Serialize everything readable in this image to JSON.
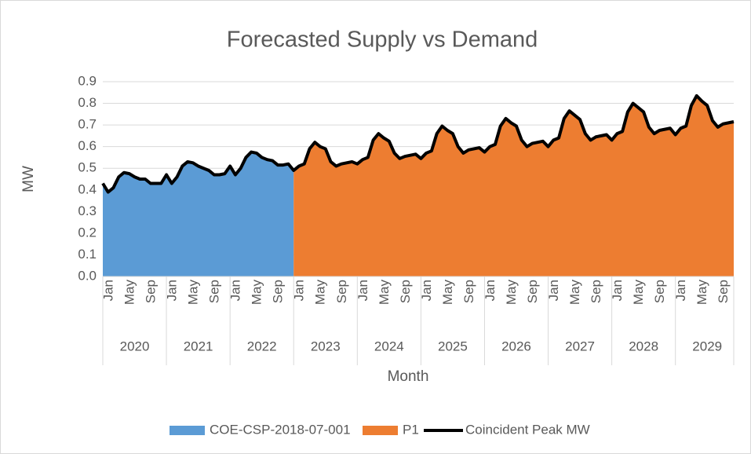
{
  "chart_data": {
    "type": "area",
    "title": "Forecasted Supply vs Demand",
    "y_label": "MW",
    "x_label": "Month",
    "categories": [
      "Jan",
      null,
      null,
      null,
      "May",
      null,
      null,
      null,
      "Sep",
      null,
      null,
      null,
      "Jan",
      null,
      null,
      null,
      "May",
      null,
      null,
      null,
      "Sep",
      null,
      null,
      null,
      "Jan",
      null,
      null,
      null,
      "May",
      null,
      null,
      null,
      "Sep",
      null,
      null,
      null,
      "Jan",
      null,
      null,
      null,
      "May",
      null,
      null,
      null,
      "Sep",
      null,
      null,
      null,
      "Jan",
      null,
      null,
      null,
      "May",
      null,
      null,
      null,
      "Sep",
      null,
      null,
      null,
      "Jan",
      null,
      null,
      null,
      "May",
      null,
      null,
      null,
      "Sep",
      null,
      null,
      null,
      "Jan",
      null,
      null,
      null,
      "May",
      null,
      null,
      null,
      "Sep",
      null,
      null,
      null,
      "Jan",
      null,
      null,
      null,
      "May",
      null,
      null,
      null,
      "Sep",
      null,
      null,
      null,
      "Jan",
      null,
      null,
      null,
      "May",
      null,
      null,
      null,
      "Sep",
      null,
      null,
      null,
      "Jan",
      null,
      null,
      null,
      "May",
      null,
      null,
      null,
      "Sep",
      null,
      null,
      null
    ],
    "years": [
      "2020",
      "2021",
      "2022",
      "2023",
      "2024",
      "2025",
      "2026",
      "2027",
      "2028",
      "2029"
    ],
    "ylim": [
      0,
      0.9
    ],
    "yticks": [
      {
        "value": 0,
        "label": "0.0"
      },
      0.1,
      0.2,
      0.3,
      0.4,
      0.5,
      0.6,
      0.7,
      0.8,
      0.9
    ],
    "grid": true,
    "legend": "bottom",
    "series": [
      {
        "name": "COE-CSP-2018-07-001",
        "type": "area",
        "color": "#5b9bd5",
        "values": [
          0.43,
          0.39,
          0.41,
          0.46,
          0.48,
          0.475,
          0.46,
          0.45,
          0.45,
          0.43,
          0.43,
          0.43,
          0.47,
          0.43,
          0.46,
          0.51,
          0.53,
          0.525,
          0.51,
          0.5,
          0.49,
          0.47,
          0.47,
          0.475,
          0.51,
          0.47,
          0.5,
          0.55,
          0.575,
          0.57,
          0.55,
          0.54,
          0.535,
          0.515,
          0.515,
          0.52,
          0.49,
          null,
          null,
          null,
          null,
          null,
          null,
          null,
          null,
          null,
          null,
          null,
          null,
          null,
          null,
          null,
          null,
          null,
          null,
          null,
          null,
          null,
          null,
          null,
          null,
          null,
          null,
          null,
          null,
          null,
          null,
          null,
          null,
          null,
          null,
          null,
          null,
          null,
          null,
          null,
          null,
          null,
          null,
          null,
          null,
          null,
          null,
          null,
          null,
          null,
          null,
          null,
          null,
          null,
          null,
          null,
          null,
          null,
          null,
          null,
          null,
          null,
          null,
          null,
          null,
          null,
          null,
          null,
          null,
          null,
          null,
          null,
          null,
          null,
          null,
          null,
          null,
          null,
          null,
          null,
          null,
          null,
          null,
          null
        ]
      },
      {
        "name": "P1",
        "type": "area",
        "color": "#ed7d31",
        "values": [
          null,
          null,
          null,
          null,
          null,
          null,
          null,
          null,
          null,
          null,
          null,
          null,
          null,
          null,
          null,
          null,
          null,
          null,
          null,
          null,
          null,
          null,
          null,
          null,
          null,
          null,
          null,
          null,
          null,
          null,
          null,
          null,
          null,
          null,
          null,
          null,
          0.49,
          0.51,
          0.52,
          0.59,
          0.62,
          0.6,
          0.59,
          0.53,
          0.51,
          0.52,
          0.525,
          0.53,
          0.52,
          0.54,
          0.55,
          0.63,
          0.66,
          0.64,
          0.625,
          0.57,
          0.545,
          0.555,
          0.56,
          0.565,
          0.545,
          0.57,
          0.58,
          0.66,
          0.695,
          0.675,
          0.66,
          0.6,
          0.57,
          0.585,
          0.59,
          0.595,
          0.575,
          0.6,
          0.61,
          0.695,
          0.73,
          0.71,
          0.695,
          0.63,
          0.6,
          0.615,
          0.62,
          0.625,
          0.6,
          0.63,
          0.64,
          0.73,
          0.765,
          0.745,
          0.725,
          0.66,
          0.63,
          0.645,
          0.65,
          0.655,
          0.63,
          0.66,
          0.67,
          0.76,
          0.8,
          0.78,
          0.76,
          0.69,
          0.66,
          0.675,
          0.68,
          0.685,
          0.655,
          0.685,
          0.695,
          0.79,
          0.835,
          0.81,
          0.79,
          0.72,
          0.69,
          0.705,
          0.71,
          0.715
        ]
      },
      {
        "name": "Coincident Peak MW",
        "type": "line",
        "color": "#000000",
        "values": [
          0.43,
          0.39,
          0.41,
          0.46,
          0.48,
          0.475,
          0.46,
          0.45,
          0.45,
          0.43,
          0.43,
          0.43,
          0.47,
          0.43,
          0.46,
          0.51,
          0.53,
          0.525,
          0.51,
          0.5,
          0.49,
          0.47,
          0.47,
          0.475,
          0.51,
          0.47,
          0.5,
          0.55,
          0.575,
          0.57,
          0.55,
          0.54,
          0.535,
          0.515,
          0.515,
          0.52,
          0.49,
          0.51,
          0.52,
          0.59,
          0.62,
          0.6,
          0.59,
          0.53,
          0.51,
          0.52,
          0.525,
          0.53,
          0.52,
          0.54,
          0.55,
          0.63,
          0.66,
          0.64,
          0.625,
          0.57,
          0.545,
          0.555,
          0.56,
          0.565,
          0.545,
          0.57,
          0.58,
          0.66,
          0.695,
          0.675,
          0.66,
          0.6,
          0.57,
          0.585,
          0.59,
          0.595,
          0.575,
          0.6,
          0.61,
          0.695,
          0.73,
          0.71,
          0.695,
          0.63,
          0.6,
          0.615,
          0.62,
          0.625,
          0.6,
          0.63,
          0.64,
          0.73,
          0.765,
          0.745,
          0.725,
          0.66,
          0.63,
          0.645,
          0.65,
          0.655,
          0.63,
          0.66,
          0.67,
          0.76,
          0.8,
          0.78,
          0.76,
          0.69,
          0.66,
          0.675,
          0.68,
          0.685,
          0.655,
          0.685,
          0.695,
          0.79,
          0.835,
          0.81,
          0.79,
          0.72,
          0.69,
          0.705,
          0.71,
          0.715
        ]
      }
    ]
  }
}
